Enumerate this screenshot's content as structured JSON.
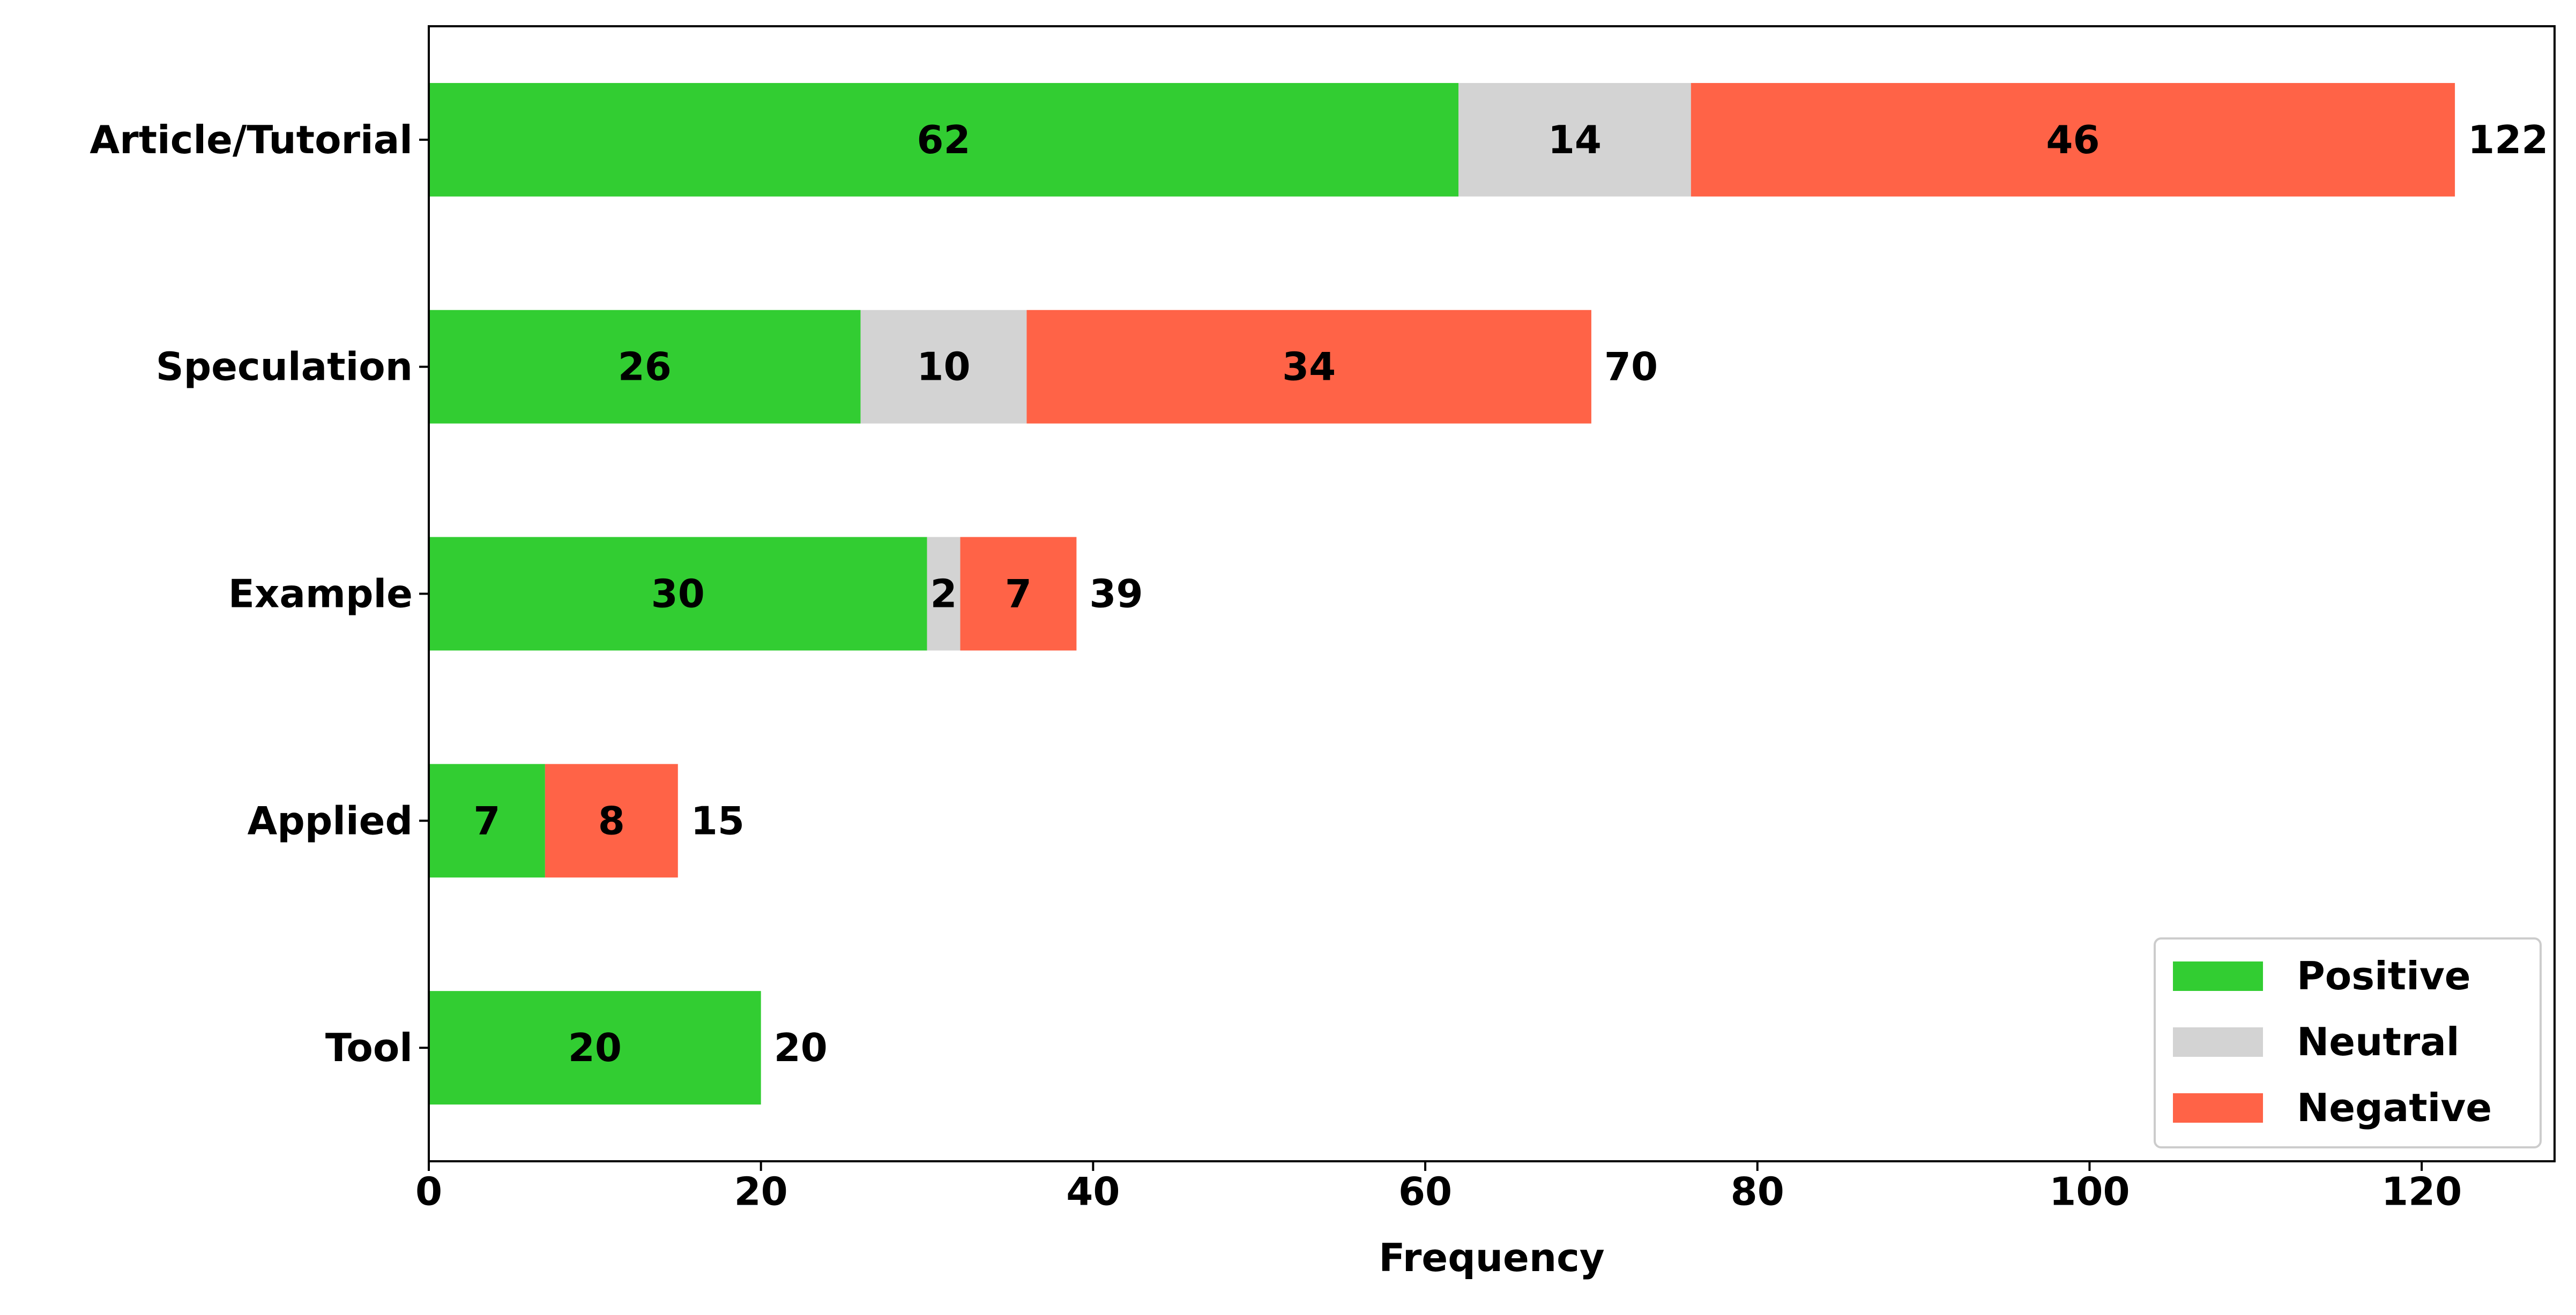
{
  "chart_data": {
    "type": "bar",
    "orientation": "horizontal",
    "stacked": true,
    "categories": [
      "Article/Tutorial",
      "Speculation",
      "Example",
      "Applied",
      "Tool"
    ],
    "series": [
      {
        "name": "Positive",
        "color": "#32cd32",
        "values": [
          62,
          26,
          30,
          7,
          20
        ]
      },
      {
        "name": "Neutral",
        "color": "#d3d3d3",
        "values": [
          14,
          10,
          2,
          0,
          0
        ]
      },
      {
        "name": "Negative",
        "color": "#ff6347",
        "values": [
          46,
          34,
          7,
          8,
          0
        ]
      }
    ],
    "totals": [
      122,
      70,
      39,
      15,
      20
    ],
    "xlabel": "Frequency",
    "ylabel": "",
    "title": "",
    "xlim": [
      0,
      128
    ],
    "xticks": [
      0,
      20,
      40,
      60,
      80,
      100,
      120
    ],
    "grid": false,
    "legend_position": "lower-right"
  }
}
